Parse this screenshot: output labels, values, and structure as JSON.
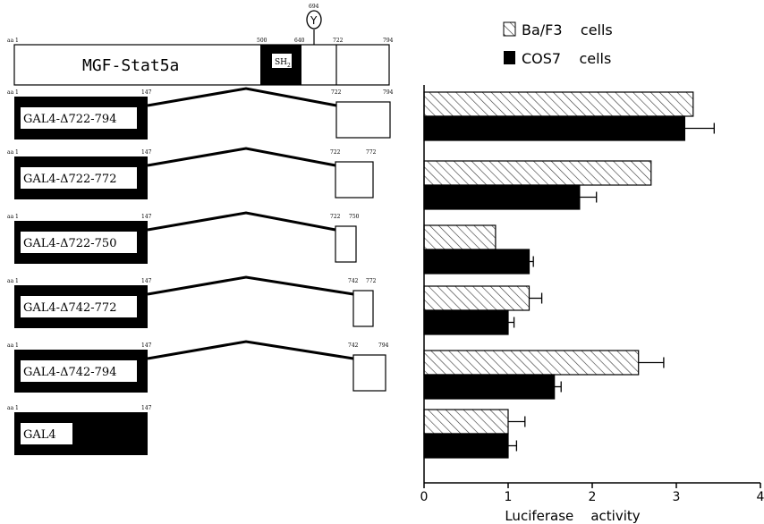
{
  "figure": {
    "protein": {
      "name": "MGF-Stat5a",
      "sh2_label": "SH",
      "sh2_sub": "2",
      "tyrosine_label": "Y",
      "tyrosine_position": "694",
      "positions": [
        "aa 1",
        "500",
        "640",
        "722",
        "794"
      ]
    },
    "constructs": [
      {
        "label": "GAL4-Δ722-794",
        "positions": [
          "aa 1",
          "147",
          "722",
          "794"
        ]
      },
      {
        "label": "GAL4-Δ722-772",
        "positions": [
          "aa 1",
          "147",
          "722",
          "772"
        ]
      },
      {
        "label": "GAL4-Δ722-750",
        "positions": [
          "aa 1",
          "147",
          "722",
          "750"
        ]
      },
      {
        "label": "GAL4-Δ742-772",
        "positions": [
          "aa 1",
          "147",
          "742",
          "772"
        ]
      },
      {
        "label": "GAL4-Δ742-794",
        "positions": [
          "aa 1",
          "147",
          "742",
          "794"
        ]
      },
      {
        "label": "GAL4",
        "positions": [
          "aa 1",
          "147"
        ]
      }
    ]
  },
  "chart_data": {
    "type": "bar",
    "orientation": "horizontal",
    "categories": [
      "GAL4-Δ722-794",
      "GAL4-Δ722-772",
      "GAL4-Δ722-750",
      "GAL4-Δ742-772",
      "GAL4-Δ742-794",
      "GAL4"
    ],
    "series": [
      {
        "name": "Ba/F3    cells",
        "pattern": "hatched",
        "color": "#ffffff",
        "values": [
          3.2,
          2.7,
          0.85,
          1.25,
          2.55,
          1.0
        ],
        "errors": [
          0.0,
          0.0,
          0.0,
          0.15,
          0.3,
          0.2
        ]
      },
      {
        "name": "COS7    cells",
        "pattern": "solid",
        "color": "#000000",
        "values": [
          3.1,
          1.85,
          1.25,
          1.0,
          1.55,
          1.0
        ],
        "errors": [
          0.35,
          0.2,
          0.05,
          0.07,
          0.08,
          0.1
        ]
      }
    ],
    "xlabel": "Luciferase    activity",
    "xlim": [
      0,
      4
    ],
    "xticks": [
      "0",
      "1",
      "2",
      "3",
      "4"
    ],
    "legend": "top"
  }
}
